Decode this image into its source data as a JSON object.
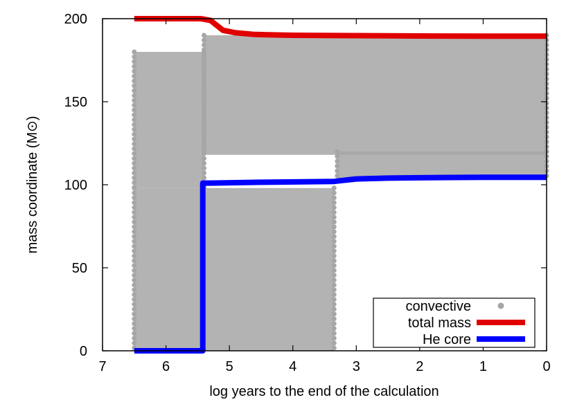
{
  "chart_data": {
    "type": "line",
    "title": "",
    "xlabel": "log years to the end of the calculation",
    "ylabel": "mass coordinate (M⊙)",
    "xlim": [
      7,
      0
    ],
    "ylim": [
      0,
      200
    ],
    "xticks": [
      7,
      6,
      5,
      4,
      3,
      2,
      1,
      0
    ],
    "yticks": [
      0,
      50,
      100,
      150,
      200
    ],
    "grid": false,
    "legend_position": "bottom-right",
    "colors": {
      "convective": "#a6a6a6",
      "total_mass": "#e00000",
      "he_core": "#0000ff",
      "axis": "#000000",
      "background": "#ffffff"
    },
    "series": [
      {
        "name": "convective",
        "style": "points",
        "regions": [
          {
            "x_from": 6.5,
            "x_to": 3.35,
            "y_from": 0,
            "y_to": 98
          },
          {
            "x_from": 6.5,
            "x_to": 5.4,
            "y_from": 98,
            "y_to": 180
          },
          {
            "x_from": 5.4,
            "x_to": 0.0,
            "y_from": 118,
            "y_to": 190
          },
          {
            "x_from": 3.3,
            "x_to": 0.0,
            "y_from": 104,
            "y_to": 120
          }
        ]
      },
      {
        "name": "total mass",
        "style": "line",
        "x": [
          6.5,
          5.9,
          5.45,
          5.3,
          5.2,
          5.1,
          4.9,
          4.6,
          4.0,
          3.0,
          2.0,
          1.0,
          0.0
        ],
        "y": [
          200,
          200,
          200,
          199,
          196,
          193,
          191.5,
          190.5,
          190,
          189.8,
          189.6,
          189.5,
          189.5
        ]
      },
      {
        "name": "He core",
        "style": "line",
        "x": [
          6.5,
          5.42,
          5.42,
          5.3,
          4.5,
          3.35,
          3.0,
          2.5,
          2.0,
          1.0,
          0.0
        ],
        "y": [
          0,
          0,
          101,
          101,
          101.5,
          102,
          103.5,
          104,
          104.2,
          104.5,
          104.5
        ]
      }
    ]
  }
}
